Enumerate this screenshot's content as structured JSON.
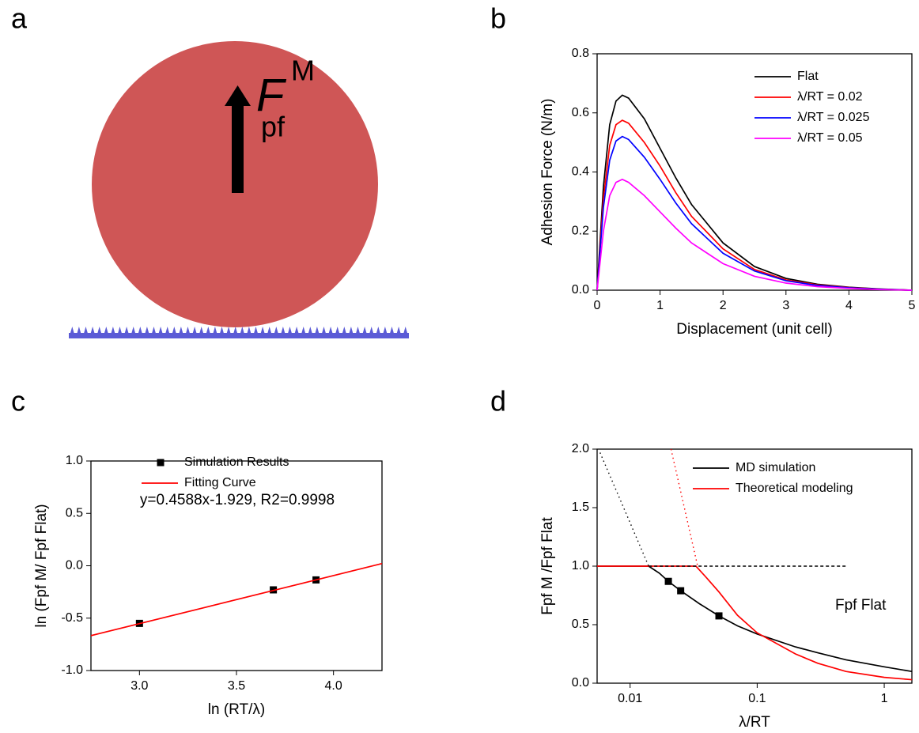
{
  "panel_labels": [
    "a",
    "b",
    "c",
    "d"
  ],
  "illustration": {
    "force_symbol": "F",
    "force_subscript": "pf",
    "force_superscript": "M"
  },
  "chart_data": [
    {
      "type": "line",
      "xlabel": "Displacement (unit cell)",
      "ylabel": "Adhesion Force (N/m)",
      "x": [
        0,
        0.1,
        0.2,
        0.3,
        0.4,
        0.5,
        0.75,
        1,
        1.25,
        1.5,
        2,
        2.5,
        3,
        3.5,
        4,
        4.5,
        5
      ],
      "series": [
        {
          "name": "Flat",
          "color": "#000000",
          "values": [
            0,
            0.35,
            0.56,
            0.64,
            0.66,
            0.65,
            0.58,
            0.48,
            0.38,
            0.29,
            0.16,
            0.08,
            0.04,
            0.02,
            0.01,
            0.004,
            0
          ]
        },
        {
          "name": "λ/RT = 0.02",
          "color": "#ff0000",
          "values": [
            0,
            0.31,
            0.49,
            0.56,
            0.575,
            0.565,
            0.5,
            0.42,
            0.33,
            0.25,
            0.14,
            0.07,
            0.035,
            0.018,
            0.009,
            0.003,
            0
          ]
        },
        {
          "name": "λ/RT = 0.025",
          "color": "#0000ff",
          "values": [
            0,
            0.28,
            0.44,
            0.505,
            0.52,
            0.51,
            0.45,
            0.375,
            0.295,
            0.225,
            0.125,
            0.065,
            0.032,
            0.016,
            0.008,
            0.003,
            0
          ]
        },
        {
          "name": "λ/RT = 0.05",
          "color": "#ff00ff",
          "values": [
            0,
            0.2,
            0.32,
            0.365,
            0.375,
            0.365,
            0.32,
            0.265,
            0.21,
            0.16,
            0.09,
            0.047,
            0.024,
            0.012,
            0.006,
            0.002,
            0
          ]
        }
      ],
      "xlim": [
        0,
        5
      ],
      "ylim": [
        0,
        0.8
      ],
      "xticks": [
        0,
        1,
        2,
        3,
        4,
        5
      ],
      "yticks": [
        {
          "value": 0,
          "label": "0.0"
        },
        0.2,
        0.4,
        0.6,
        0.8
      ],
      "legend": "upper right"
    },
    {
      "type": "scatter",
      "xlabel": "ln (RT/λ)",
      "ylabel": "ln (Fpf M/ Fpf Flat)",
      "annotation": "y=0.4588x-1.929, R2=0.9998",
      "series": [
        {
          "name": "Simulation Results",
          "color": "#000000",
          "type": "scatter",
          "x": [
            3.0,
            3.69,
            3.91
          ],
          "values": [
            -0.55,
            -0.23,
            -0.135
          ]
        },
        {
          "name": "Fitting Curve",
          "color": "#ff0000",
          "type": "line",
          "x": [
            2.75,
            4.25
          ],
          "values": [
            -0.667,
            0.021
          ]
        }
      ],
      "xlim": [
        2.75,
        4.25
      ],
      "ylim": [
        -1,
        1
      ],
      "xticks": [
        {
          "value": 3,
          "label": "3.0"
        },
        3.5,
        {
          "value": 4,
          "label": "4.0"
        }
      ],
      "yticks": [
        {
          "value": -1,
          "label": "-1.0"
        },
        -0.5,
        {
          "value": 0,
          "label": "0.0"
        },
        0.5,
        {
          "value": 1,
          "label": "1.0"
        }
      ],
      "legend": "upper left"
    },
    {
      "type": "line",
      "xscale": "log",
      "xlabel": "λ/RT",
      "ylabel": "Fpf M /Fpf Flat",
      "annotation": "Fpf Flat",
      "series": [
        {
          "name": "MD simulation",
          "color": "#000000",
          "type": "line",
          "x": [
            0.0055,
            0.014,
            0.017,
            0.02,
            0.025,
            0.035,
            0.05,
            0.07,
            0.1,
            0.2,
            0.3,
            0.5,
            1,
            1.65
          ],
          "values": [
            1,
            1,
            0.94,
            0.87,
            0.79,
            0.68,
            0.575,
            0.49,
            0.42,
            0.31,
            0.26,
            0.2,
            0.14,
            0.1
          ]
        },
        {
          "color": "#000000",
          "type": "scatter",
          "x": [
            0.02,
            0.025,
            0.05
          ],
          "values": [
            0.87,
            0.79,
            0.575
          ]
        },
        {
          "name": "Theoretical modeling",
          "color": "#ff0000",
          "type": "line",
          "x": [
            0.0055,
            0.033,
            0.04,
            0.05,
            0.07,
            0.1,
            0.2,
            0.3,
            0.5,
            1,
            1.65
          ],
          "values": [
            1,
            1,
            0.9,
            0.78,
            0.58,
            0.43,
            0.25,
            0.17,
            0.1,
            0.05,
            0.03
          ]
        },
        {
          "color": "#000000",
          "type": "line",
          "dash": "dotted",
          "x": [
            0.0058,
            0.014
          ],
          "values": [
            1.97,
            1.0
          ]
        },
        {
          "color": "#ff0000",
          "type": "line",
          "dash": "dotted",
          "x": [
            0.021,
            0.034
          ],
          "values": [
            2.0,
            1.0
          ]
        },
        {
          "color": "#000000",
          "type": "line",
          "dash": "dashed",
          "x": [
            0.014,
            0.5
          ],
          "values": [
            1.0,
            1.0
          ]
        }
      ],
      "xlim": [
        0.0055,
        1.65
      ],
      "ylim": [
        0,
        2
      ],
      "xticks": [
        0.01,
        0.1,
        1
      ],
      "yticks": [
        {
          "value": 0,
          "label": "0.0"
        },
        0.5,
        {
          "value": 1,
          "label": "1.0"
        },
        1.5,
        {
          "value": 2,
          "label": "2.0"
        }
      ],
      "legend": "upper right"
    }
  ]
}
